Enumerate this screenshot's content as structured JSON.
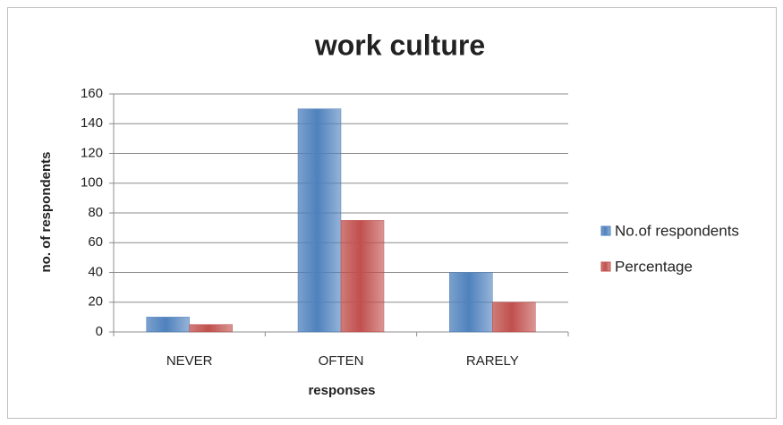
{
  "chart_data": {
    "type": "bar",
    "title": "work culture",
    "x_label": "responses",
    "y_label": "no. of respondents",
    "categories": [
      "NEVER",
      "OFTEN",
      "RARELY"
    ],
    "series": [
      {
        "name": "No.of respondents",
        "color": "#4f81bd",
        "values": [
          10,
          150,
          40
        ]
      },
      {
        "name": "Percentage",
        "color": "#c0504d",
        "values": [
          5,
          75,
          20
        ]
      }
    ],
    "ylim": [
      0,
      160
    ],
    "yticks": [
      0,
      20,
      40,
      60,
      80,
      100,
      120,
      140,
      160
    ],
    "grid": true,
    "legend": "right"
  }
}
